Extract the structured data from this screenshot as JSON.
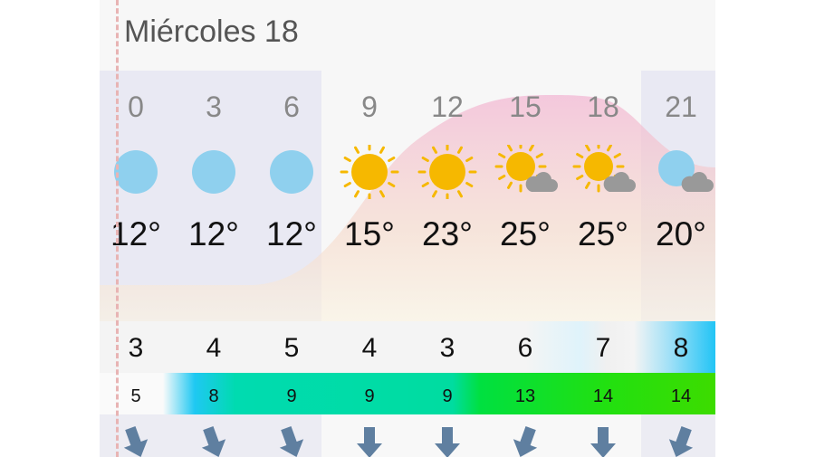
{
  "day_title": "Miércoles 18",
  "hours": [
    "0",
    "3",
    "6",
    "9",
    "12",
    "15",
    "18",
    "21"
  ],
  "icons": [
    "clear-night-icon",
    "clear-night-icon",
    "clear-night-icon",
    "sun-icon",
    "sun-icon",
    "sun-partly-cloudy-icon",
    "sun-partly-cloudy-icon",
    "night-partly-cloudy-icon"
  ],
  "temps": [
    "12°",
    "12°",
    "12°",
    "15°",
    "23°",
    "25°",
    "25°",
    "20°"
  ],
  "wind": [
    "3",
    "4",
    "5",
    "4",
    "3",
    "6",
    "7",
    "8"
  ],
  "gusts": [
    "5",
    "8",
    "9",
    "9",
    "9",
    "13",
    "14",
    "14"
  ],
  "wind_direction_deg": [
    340,
    340,
    340,
    0,
    0,
    20,
    0,
    20
  ],
  "colors": {
    "sun": "#f6b800",
    "moon": "#8fd0ee",
    "cloud": "#999999",
    "arrow": "#5f7fa0",
    "night_band": "#e9e9f3"
  }
}
